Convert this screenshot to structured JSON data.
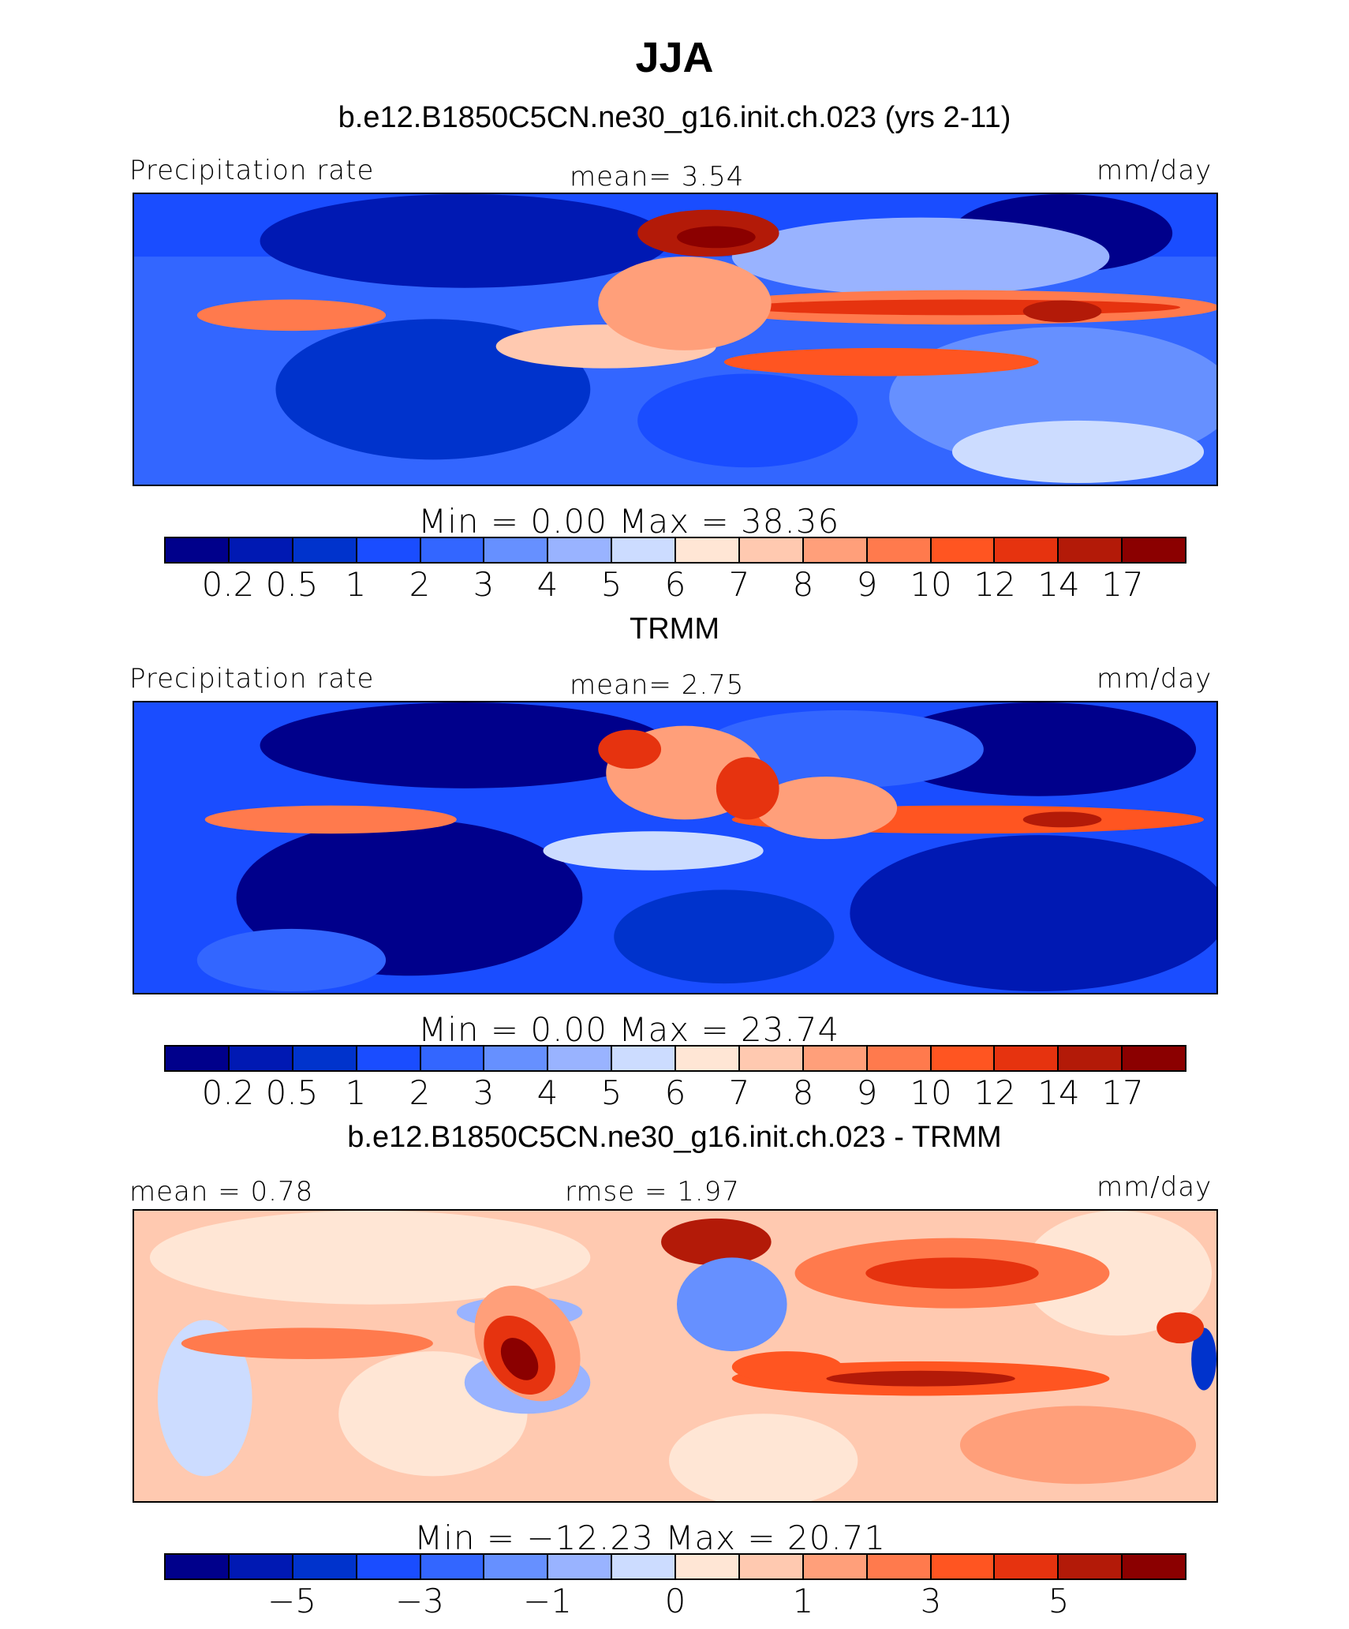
{
  "title": "JJA",
  "colors": {
    "seq": [
      "#00008b",
      "#0019b3",
      "#0033cc",
      "#1a4dff",
      "#3366ff",
      "#6690ff",
      "#99b3ff",
      "#ccdcff",
      "#ffe6d5",
      "#ffc9b0",
      "#ff9f7a",
      "#ff7a4d",
      "#ff5521",
      "#e6330f",
      "#b31a08",
      "#8b0000"
    ],
    "diff": [
      "#00008b",
      "#0019b3",
      "#0033cc",
      "#1a4dff",
      "#3366ff",
      "#6690ff",
      "#99b3ff",
      "#ccdcff",
      "#ffe6d5",
      "#ffc9b0",
      "#ff9f7a",
      "#ff7a4d",
      "#ff5521",
      "#e6330f",
      "#b31a08",
      "#8b0000"
    ]
  },
  "panels": [
    {
      "subtitle": "b.e12.B1850C5CN.ne30_g16.init.ch.023 (yrs 2-11)",
      "left_label": "Precipitation rate",
      "center_label": "mean=    3.54",
      "right_label": "mm/day",
      "minmax": "Min  =     0.00  Max  =    38.36",
      "ticks": [
        "0.2",
        "0.5",
        "1",
        "2",
        "3",
        "4",
        "5",
        "6",
        "7",
        "8",
        "9",
        "10",
        "12",
        "14",
        "17"
      ]
    },
    {
      "subtitle": "TRMM",
      "left_label": "Precipitation rate",
      "center_label": "mean=    2.75",
      "right_label": "mm/day",
      "minmax": "Min  =     0.00  Max  =    23.74",
      "ticks": [
        "0.2",
        "0.5",
        "1",
        "2",
        "3",
        "4",
        "5",
        "6",
        "7",
        "8",
        "9",
        "10",
        "12",
        "14",
        "17"
      ]
    },
    {
      "subtitle": "b.e12.B1850C5CN.ne30_g16.init.ch.023 - TRMM",
      "left_label": "mean  =    0.78",
      "center_label": "rmse  =    1.97",
      "right_label": "mm/day",
      "minmax": "Min  =  −12.23  Max  =    20.71",
      "ticks": [
        "−5",
        "−3",
        "−1",
        "0",
        "1",
        "3",
        "5"
      ]
    }
  ]
}
